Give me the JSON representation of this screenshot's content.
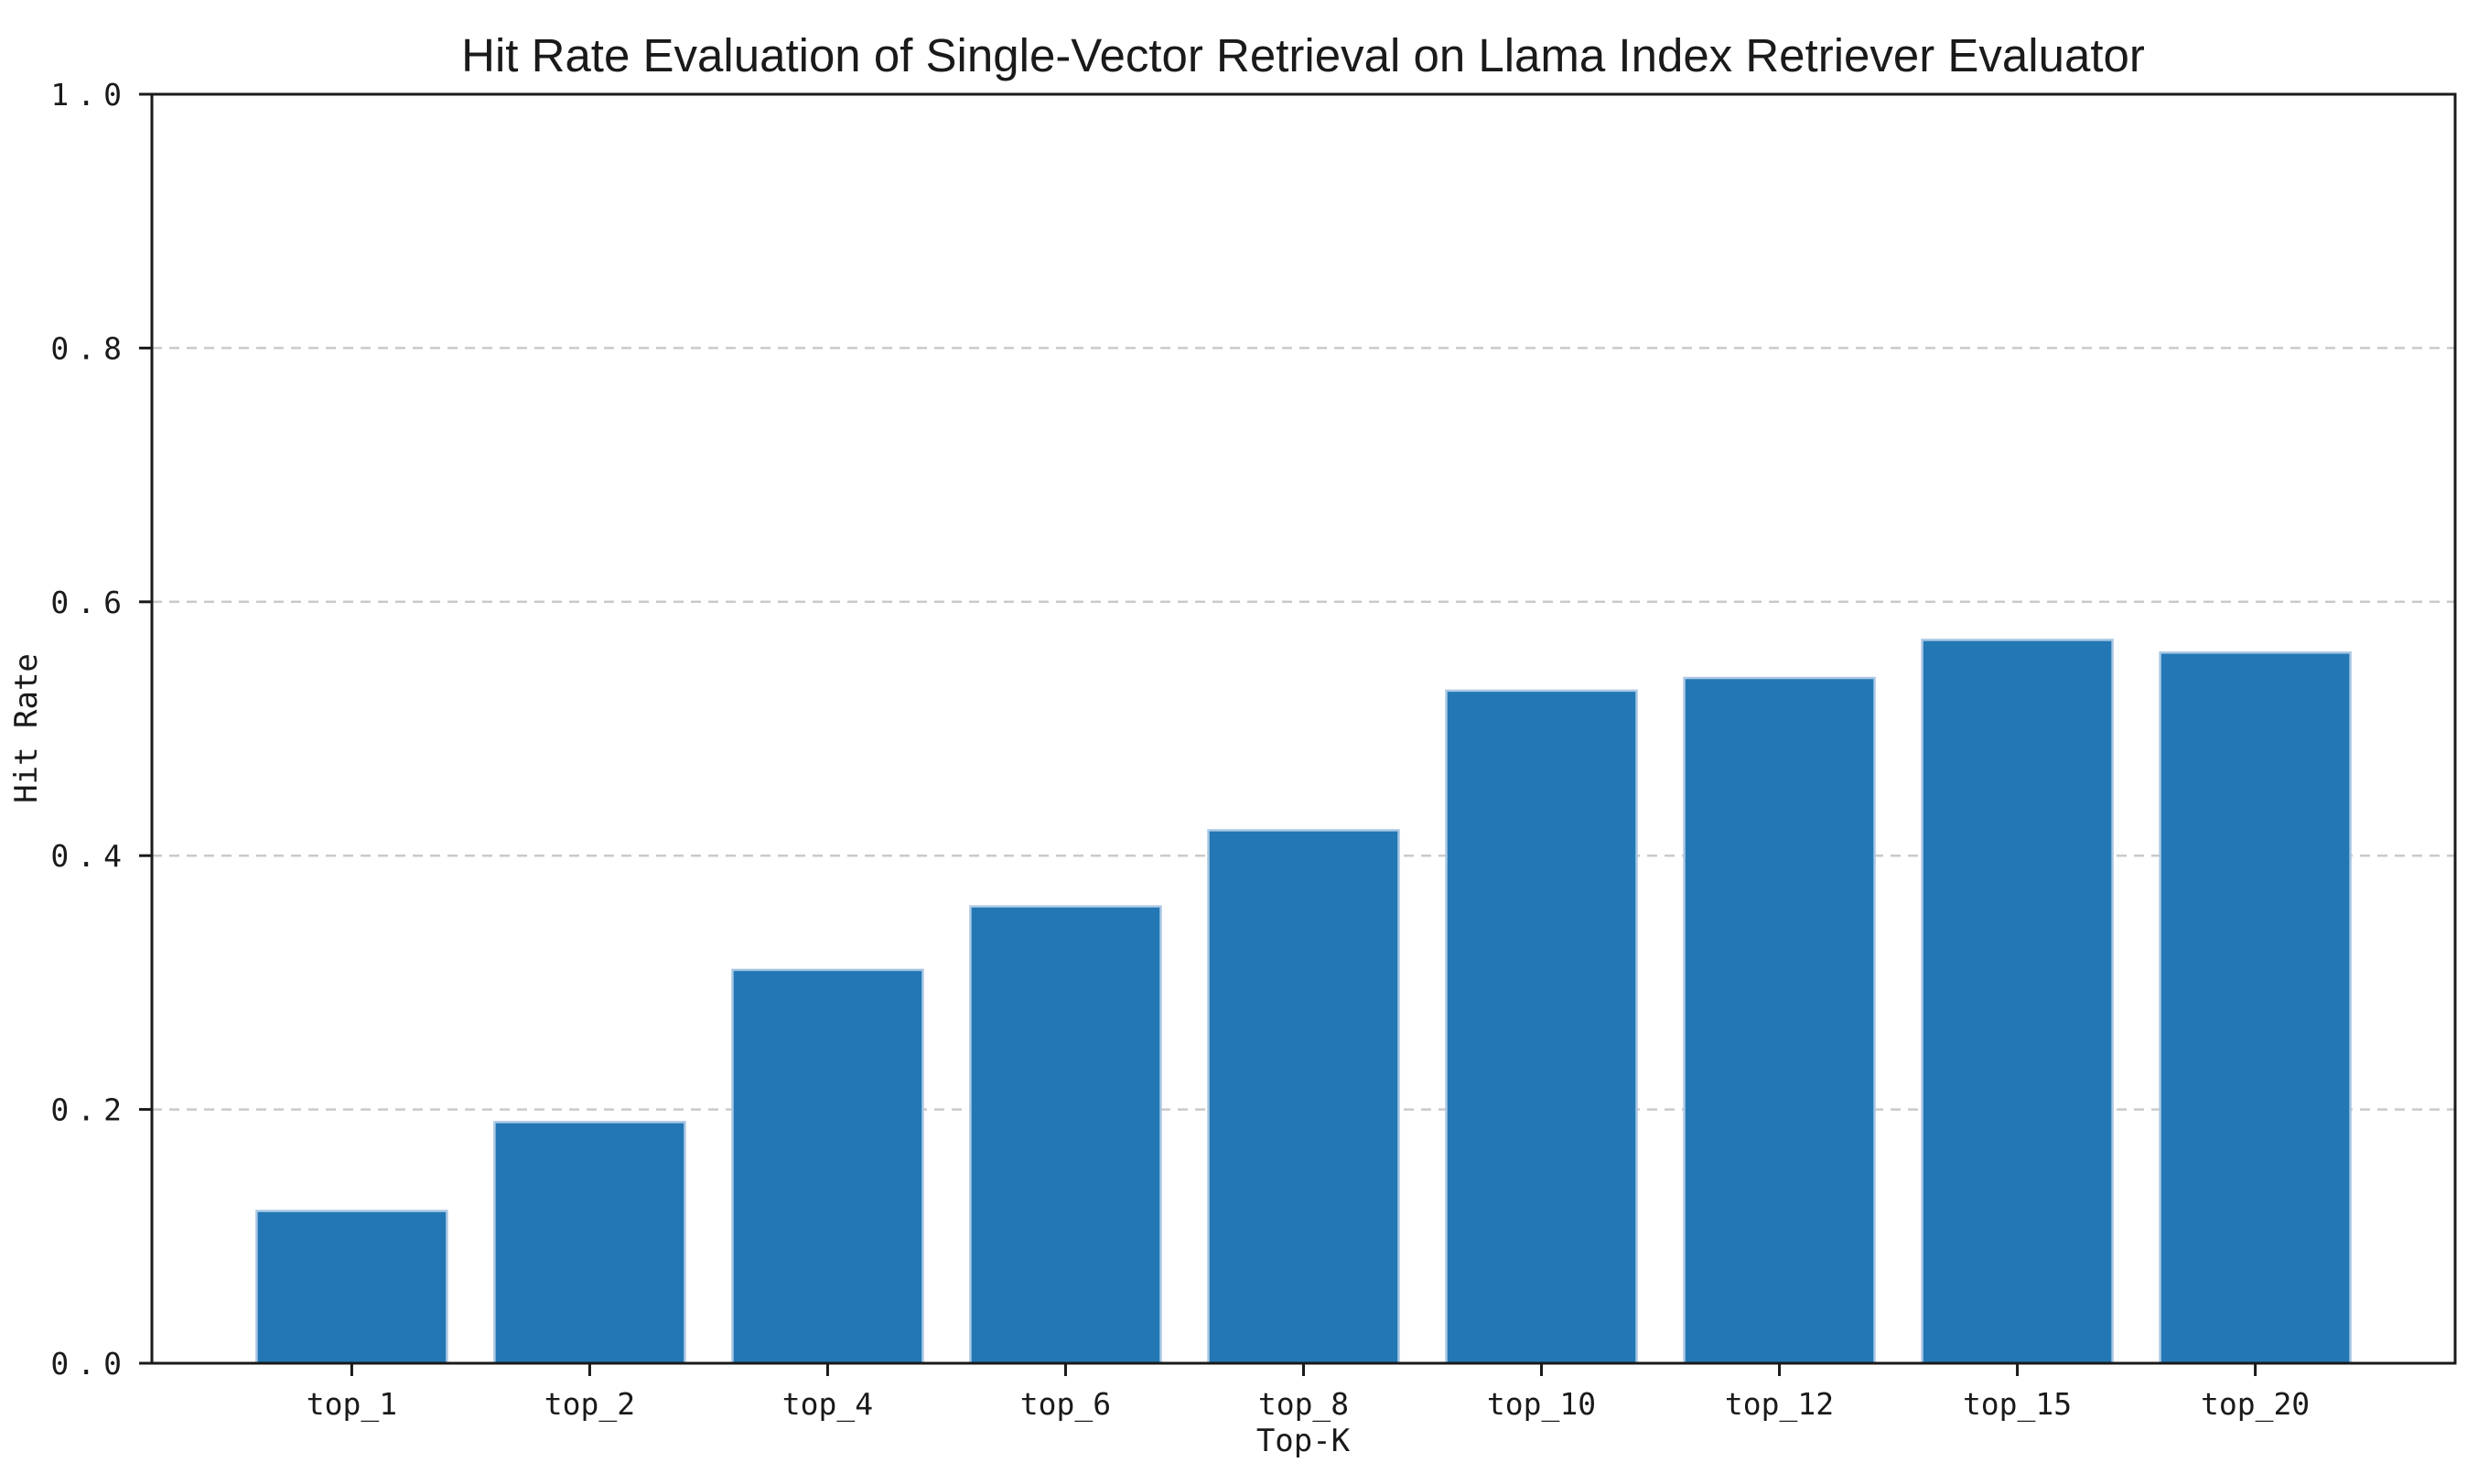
{
  "chart_data": {
    "type": "bar",
    "title": "Hit Rate Evaluation of Single-Vector Retrieval on Llama Index Retriever Evaluator",
    "xlabel": "Top-K",
    "ylabel": "Hit Rate",
    "categories": [
      "top_1",
      "top_2",
      "top_4",
      "top_6",
      "top_8",
      "top_10",
      "top_12",
      "top_15",
      "top_20"
    ],
    "values": [
      0.12,
      0.19,
      0.31,
      0.36,
      0.42,
      0.53,
      0.54,
      0.57,
      0.56
    ],
    "ylim": [
      0.0,
      1.0
    ],
    "ytick_labels": [
      "0.0",
      "0.2",
      "0.4",
      "0.6",
      "0.8",
      "1.0"
    ],
    "grid": "horizontal-dashed",
    "legend": "none",
    "colors": {
      "bar_fill": "#2277b4",
      "bar_edge": "#aac8e4",
      "grid_line": "#cacaca",
      "spine": "#1a1a1a",
      "text": "#1a1a1a",
      "background": "#ffffff"
    }
  }
}
